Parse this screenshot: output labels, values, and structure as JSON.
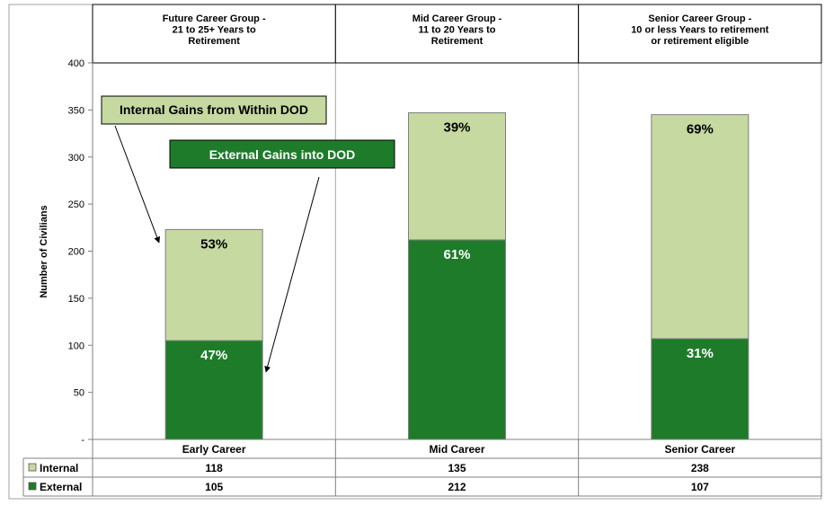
{
  "chart_data": {
    "type": "bar",
    "stacked": true,
    "categories": [
      "Early Career",
      "Mid Career",
      "Senior Career"
    ],
    "group_headers": [
      [
        "Future Career Group -",
        "21 to 25+ Years to",
        "Retirement"
      ],
      [
        "Mid Career Group -",
        "11 to 20 Years to",
        "Retirement"
      ],
      [
        "Senior Career Group -",
        "10 or less Years to retirement",
        "or retirement eligible"
      ]
    ],
    "series": [
      {
        "name": "External",
        "values": [
          105,
          212,
          107
        ],
        "color": "#1e7b2a",
        "labels": [
          "47%",
          "61%",
          "31%"
        ]
      },
      {
        "name": "Internal",
        "values": [
          118,
          135,
          238
        ],
        "color": "#c5d9a0",
        "labels": [
          "53%",
          "39%",
          "69%"
        ]
      }
    ],
    "ylabel": "Number of Civilians",
    "ylim": [
      0,
      400
    ],
    "yticks": [
      0,
      50,
      100,
      150,
      200,
      250,
      300,
      350,
      400
    ],
    "ytick_labels": [
      "-",
      "50",
      "100",
      "150",
      "200",
      "250",
      "300",
      "350",
      "400"
    ],
    "grid": "vertical separators only",
    "legend": "data table rows",
    "annotations": [
      {
        "text": "Internal Gains from Within DOD",
        "fill": "#c5d9a0",
        "text_color": "#000000"
      },
      {
        "text": "External Gains into DOD",
        "fill": "#1e7b2a",
        "text_color": "#ffffff"
      }
    ]
  }
}
